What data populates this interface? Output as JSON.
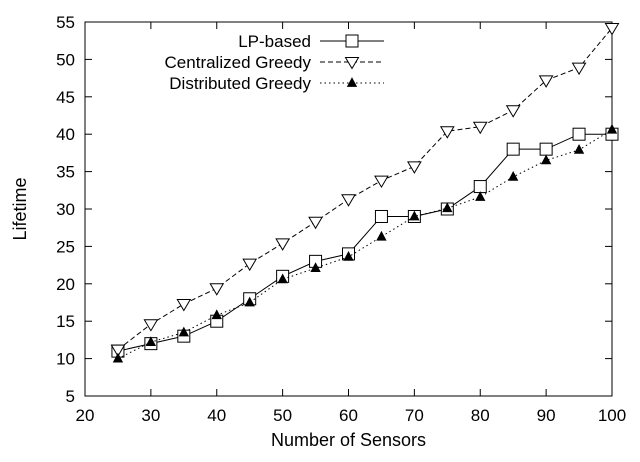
{
  "chart_data": {
    "type": "line",
    "title": "",
    "xlabel": "Number of Sensors",
    "ylabel": "Lifetime",
    "xlim": [
      20,
      100
    ],
    "ylim": [
      5,
      55
    ],
    "xticks": [
      20,
      30,
      40,
      50,
      60,
      70,
      80,
      90,
      100
    ],
    "yticks": [
      5,
      10,
      15,
      20,
      25,
      30,
      35,
      40,
      45,
      50,
      55
    ],
    "grid": false,
    "legend_position": "top-left",
    "series": [
      {
        "name": "LP-based",
        "marker": "open-square",
        "line": "solid",
        "x": [
          25,
          30,
          35,
          40,
          45,
          50,
          55,
          60,
          65,
          70,
          75,
          80,
          85,
          90,
          95,
          100
        ],
        "y": [
          11,
          12,
          13,
          15,
          18,
          21,
          23,
          24,
          29,
          29,
          30,
          33,
          38,
          38,
          40,
          40
        ]
      },
      {
        "name": "Centralized Greedy",
        "marker": "open-triangle-down",
        "line": "dashed",
        "x": [
          25,
          30,
          35,
          40,
          45,
          50,
          55,
          60,
          65,
          70,
          75,
          80,
          85,
          90,
          95,
          100
        ],
        "y": [
          11.2,
          14.6,
          17.3,
          19.4,
          22.7,
          25.4,
          28.3,
          31.3,
          33.8,
          35.7,
          40.4,
          41,
          43.2,
          47.2,
          48.9,
          54.2
        ]
      },
      {
        "name": "Distributed Greedy",
        "marker": "filled-triangle-up",
        "line": "dotted",
        "x": [
          25,
          30,
          35,
          40,
          45,
          50,
          55,
          60,
          65,
          70,
          75,
          80,
          85,
          90,
          95,
          100
        ],
        "y": [
          10,
          12.2,
          13.5,
          15.8,
          17.5,
          20.6,
          22.1,
          23.6,
          26.3,
          29,
          30.1,
          31.6,
          34.3,
          36.5,
          37.9,
          40.6
        ]
      }
    ]
  }
}
